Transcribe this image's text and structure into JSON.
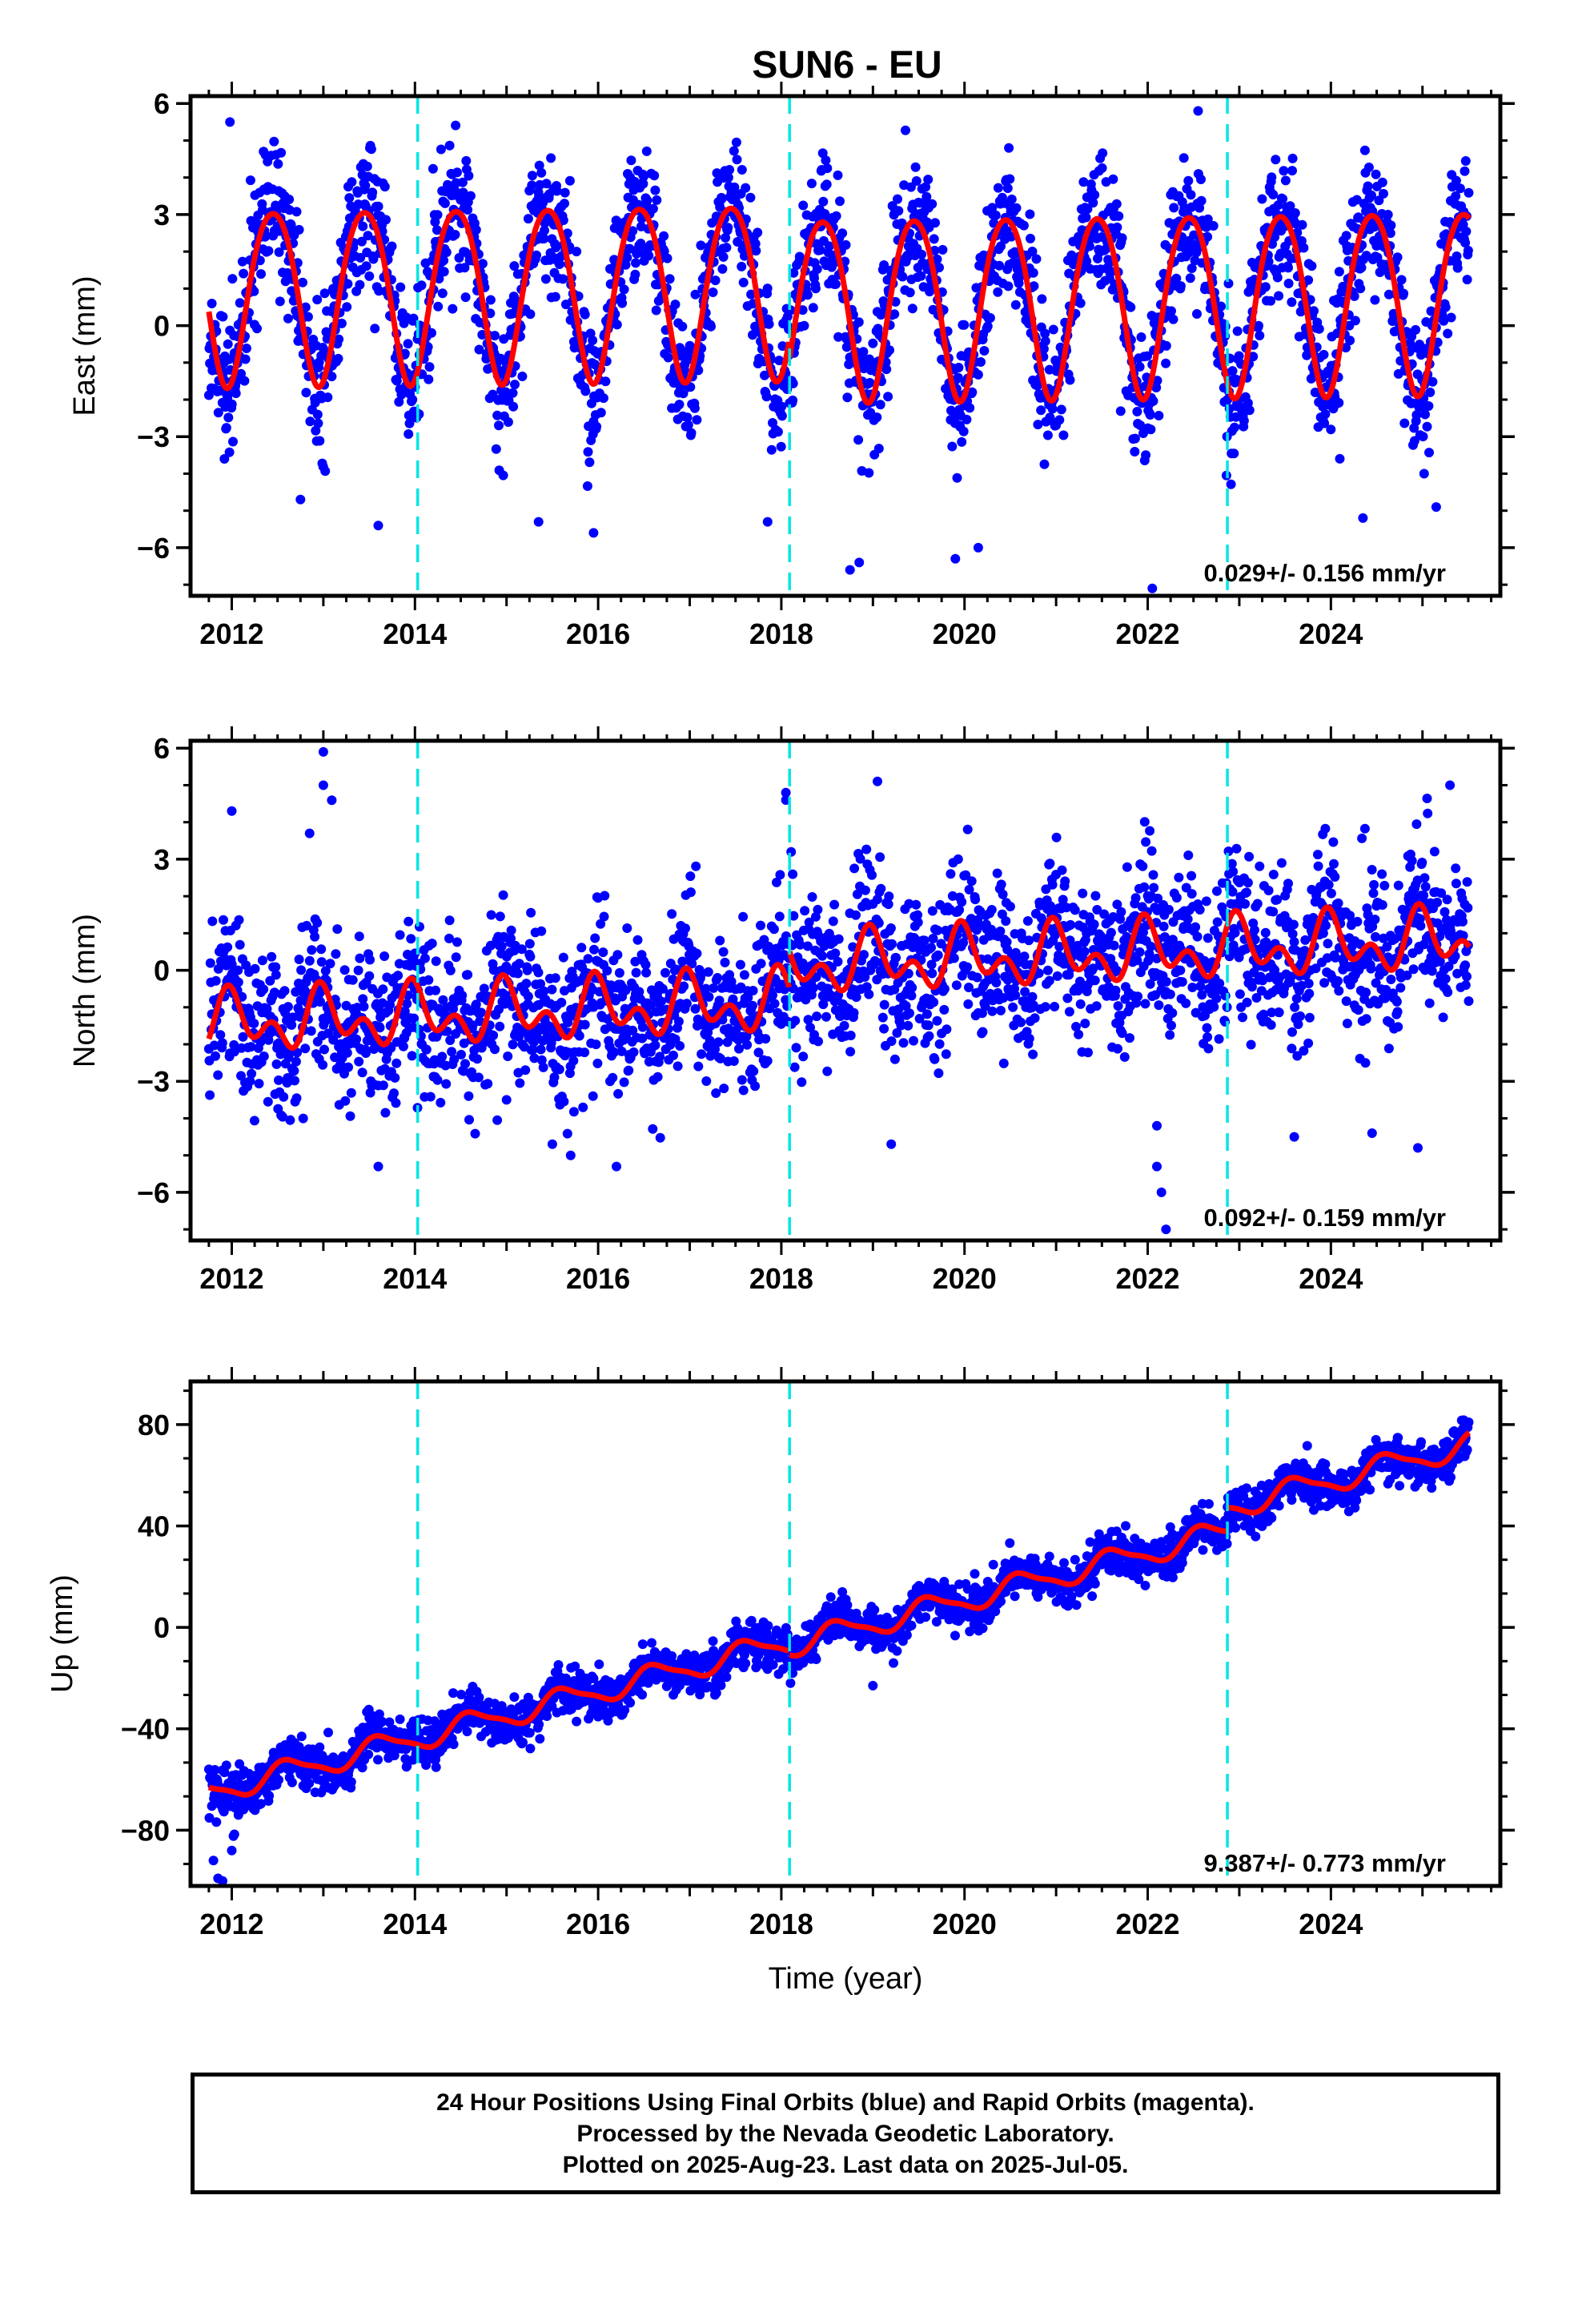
{
  "title": "SUN6 - EU",
  "footer": {
    "line1": "24 Hour Positions Using Final Orbits (blue) and Rapid Orbits (magenta).",
    "line2": "Processed by the Nevada Geodetic Laboratory.",
    "line3": "Plotted on 2025-Aug-23. Last data on 2025-Jul-05."
  },
  "colors": {
    "points": "#0000ff",
    "model": "#ff0000",
    "steps": "#00e5e5",
    "frame": "#000000"
  },
  "chart_data": [
    {
      "type": "scatter",
      "ylabel": "East (mm)",
      "xlim": [
        2011.55,
        2025.85
      ],
      "ylim": [
        -7.3,
        6.2
      ],
      "yticks": [
        -6,
        -3,
        0,
        3,
        6
      ],
      "ytick_labels": [
        "−6",
        "−3",
        "0",
        "3",
        "6"
      ],
      "xticks": [
        2012,
        2014,
        2016,
        2018,
        2020,
        2022,
        2024
      ],
      "xtick_labels": [
        "2012",
        "2014",
        "2016",
        "2018",
        "2020",
        "2022",
        "2024"
      ],
      "steps": [
        2014.03,
        2018.09,
        2022.87
      ],
      "rate_label": "0.029+/- 0.156 mm/yr",
      "data_start": 2011.75,
      "data_end": 2025.51,
      "model": {
        "offset": 0.0,
        "trend": 0.029,
        "annual_amp": 2.35,
        "annual_phase_year": 2012.45,
        "semiannual_amp": 0.25,
        "semiannual_phase_year": 2012.2,
        "amp_by_year": [
          [
            2011.7,
            2.35
          ],
          [
            2018.0,
            2.35
          ],
          [
            2018.3,
            2.45
          ],
          [
            2022.9,
            2.45
          ],
          [
            2023.0,
            2.45
          ]
        ],
        "offsets_by_year": [
          [
            2011.7,
            0.9
          ],
          [
            2018.09,
            0.4
          ],
          [
            2022.87,
            0.4
          ],
          [
            2022.9,
            0.4
          ]
        ],
        "scatter_sd": 0.95
      },
      "outliers": [
        [
          2011.98,
          5.5
        ],
        [
          2011.92,
          -3.6
        ],
        [
          2012.75,
          -4.7
        ],
        [
          2013.6,
          -5.4
        ],
        [
          2015.35,
          -5.3
        ],
        [
          2015.95,
          -5.6
        ],
        [
          2017.85,
          -5.3
        ],
        [
          2018.75,
          -6.6
        ],
        [
          2018.85,
          -6.4
        ],
        [
          2019.9,
          -6.3
        ],
        [
          2020.15,
          -6.0
        ],
        [
          2022.05,
          -7.1
        ],
        [
          2022.55,
          5.8
        ],
        [
          2024.35,
          -5.2
        ],
        [
          2025.15,
          -4.9
        ]
      ]
    },
    {
      "type": "scatter",
      "ylabel": "North (mm)",
      "xlim": [
        2011.55,
        2025.85
      ],
      "ylim": [
        -7.3,
        6.2
      ],
      "yticks": [
        -6,
        -3,
        0,
        3,
        6
      ],
      "ytick_labels": [
        "−6",
        "−3",
        "0",
        "3",
        "6"
      ],
      "xticks": [
        2012,
        2014,
        2016,
        2018,
        2020,
        2022,
        2024
      ],
      "xtick_labels": [
        "2012",
        "2014",
        "2016",
        "2018",
        "2020",
        "2022",
        "2024"
      ],
      "steps": [
        2014.03,
        2018.09,
        2022.87
      ],
      "rate_label": "0.092+/- 0.159 mm/yr",
      "data_start": 2011.75,
      "data_end": 2025.51,
      "model": {
        "offset": -0.9,
        "trend": 0.092,
        "annual_amp": 0.55,
        "annual_phase_year": 2012.0,
        "semiannual_amp": 0.5,
        "semiannual_phase_year": 2012.45,
        "amp_by_year": [],
        "offsets_by_year": [
          [
            2011.7,
            -0.55
          ],
          [
            2018.09,
            0.45
          ],
          [
            2022.87,
            0.45
          ]
        ],
        "scatter_sd": 1.05
      },
      "outliers": [
        [
          2012.0,
          4.3
        ],
        [
          2013.0,
          5.9
        ],
        [
          2013.0,
          5.0
        ],
        [
          2012.85,
          3.7
        ],
        [
          2013.6,
          -5.3
        ],
        [
          2015.0,
          -3.5
        ],
        [
          2015.5,
          -4.7
        ],
        [
          2015.7,
          -5.0
        ],
        [
          2016.2,
          -5.3
        ],
        [
          2018.05,
          4.8
        ],
        [
          2018.05,
          4.6
        ],
        [
          2019.05,
          5.1
        ],
        [
          2019.2,
          -4.7
        ],
        [
          2022.1,
          -4.2
        ],
        [
          2022.1,
          -5.3
        ],
        [
          2022.15,
          -6.0
        ],
        [
          2022.2,
          -7.0
        ],
        [
          2023.6,
          -4.5
        ],
        [
          2024.45,
          -4.4
        ],
        [
          2024.95,
          -4.8
        ],
        [
          2025.3,
          5.0
        ]
      ]
    },
    {
      "type": "scatter",
      "ylabel": "Up (mm)",
      "xlabel": "Time (year)",
      "xlim": [
        2011.55,
        2025.85
      ],
      "ylim": [
        -102,
        97
      ],
      "yticks": [
        -80,
        -40,
        0,
        40,
        80
      ],
      "ytick_labels": [
        "−80",
        "−40",
        "0",
        "40",
        "80"
      ],
      "xticks": [
        2012,
        2014,
        2016,
        2018,
        2020,
        2022,
        2024
      ],
      "xtick_labels": [
        "2012",
        "2014",
        "2016",
        "2018",
        "2020",
        "2022",
        "2024"
      ],
      "steps": [
        2014.03,
        2018.09,
        2022.87
      ],
      "rate_label": "9.387+/- 0.773 mm/yr",
      "data_start": 2011.75,
      "data_end": 2025.51,
      "model": {
        "offset": -65.0,
        "trend": 9.387,
        "annual_amp": 4.5,
        "annual_phase_year": 2012.62,
        "semiannual_amp": 1.2,
        "semiannual_phase_year": 2012.5,
        "amp_by_year": [],
        "offsets_by_year": [
          [
            2011.7,
            0.0
          ],
          [
            2018.09,
            -1.5
          ],
          [
            2022.87,
            8.0
          ],
          [
            2022.9,
            8.0
          ]
        ],
        "scatter_sd": 4.2
      },
      "outliers": [
        [
          2011.8,
          -92
        ],
        [
          2011.85,
          -99
        ],
        [
          2011.9,
          -100
        ],
        [
          2012.0,
          -88
        ],
        [
          2016.95,
          -12
        ],
        [
          2017.0,
          -15
        ],
        [
          2018.1,
          -22
        ],
        [
          2019.0,
          -23
        ],
        [
          2025.1,
          55
        ]
      ]
    }
  ]
}
